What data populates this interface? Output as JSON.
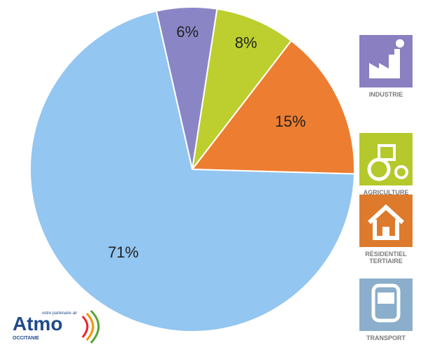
{
  "chart_data": {
    "type": "pie",
    "categories": [
      "INDUSTRIE",
      "AGRICULTURE",
      "RÉSIDENTIEL TERTIAIRE",
      "TRANSPORT"
    ],
    "values": [
      6,
      8,
      15,
      71
    ],
    "value_labels": [
      "6%",
      "8%",
      "15%",
      "71%"
    ],
    "colors": [
      "#8a86c6",
      "#bccf2e",
      "#ed7d31",
      "#93c6f0"
    ],
    "icon_colors": [
      "#8a7fc0",
      "#b5c82c",
      "#de7a2c",
      "#8aaecb"
    ]
  },
  "logo": {
    "name": "Atmo",
    "tagline": "votre partenaire air",
    "region": "OCCITANIE"
  }
}
